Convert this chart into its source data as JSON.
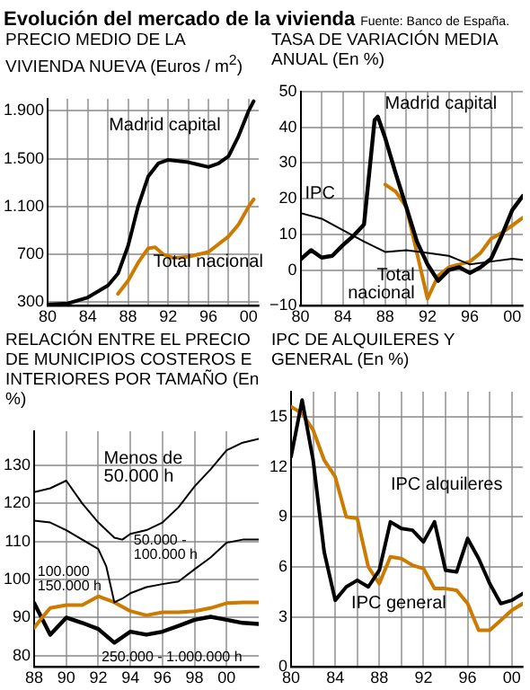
{
  "chart_data": [
    {
      "type": "line",
      "title": "PRECIO MEDIO DE LA VIVIENDA NUEVA (Euros / m$^{2}$)",
      "annotations": [
        "Evolución del mercado de la vivienda",
        "Fuente: Banco de España."
      ],
      "xlim": [
        1980,
        2001
      ],
      "xticks": [
        {
          "value": 1980,
          "label": "80"
        },
        {
          "value": 1982,
          "label": null
        },
        {
          "value": 1984,
          "label": "84"
        },
        {
          "value": 1986,
          "label": null
        },
        {
          "value": 1988,
          "label": "88"
        },
        {
          "value": 1990,
          "label": null
        },
        {
          "value": 1992,
          "label": "92"
        },
        {
          "value": 1994,
          "label": null
        },
        {
          "value": 1996,
          "label": "96"
        },
        {
          "value": 1998,
          "label": null
        },
        {
          "value": 2000,
          "label": "00"
        }
      ],
      "ylim": [
        270,
        2000
      ],
      "yticks": [
        {
          "value": 300,
          "label": "300"
        },
        {
          "value": 700,
          "label": "700"
        },
        {
          "value": 1100,
          "label": "1.100"
        },
        {
          "value": 1500,
          "label": "1.500"
        },
        {
          "value": 1900,
          "label": "1.900"
        }
      ],
      "grid": true,
      "legend": false,
      "series": [
        {
          "name": "Madrid capital",
          "color": "#000000",
          "x": [
            1980,
            1982,
            1984,
            1986,
            1987,
            1988,
            1989,
            1990,
            1991,
            1992,
            1993,
            1994,
            1995,
            1996,
            1997,
            1998,
            1999,
            2000,
            2000.5
          ],
          "values": [
            280,
            290,
            340,
            440,
            540,
            770,
            1100,
            1350,
            1460,
            1490,
            1480,
            1470,
            1450,
            1430,
            1460,
            1520,
            1690,
            1900,
            1980
          ]
        },
        {
          "name": "Total nacional",
          "color": "#cc7a00",
          "x": [
            1987,
            1988,
            1989,
            1990,
            1990.7,
            1991.5,
            1992.5,
            1994,
            1996,
            1998,
            1999,
            2000,
            2000.5
          ],
          "values": [
            370,
            480,
            630,
            750,
            760,
            700,
            670,
            680,
            720,
            850,
            950,
            1100,
            1160
          ]
        }
      ]
    },
    {
      "type": "line",
      "title": "TASA DE VARIACIÓN MEDIA ANUAL (En %)",
      "xlim": [
        1980,
        2001
      ],
      "xticks": [
        {
          "value": 1980,
          "label": "80"
        },
        {
          "value": 1982,
          "label": null
        },
        {
          "value": 1984,
          "label": "84"
        },
        {
          "value": 1986,
          "label": null
        },
        {
          "value": 1988,
          "label": "88"
        },
        {
          "value": 1990,
          "label": null
        },
        {
          "value": 1992,
          "label": "92"
        },
        {
          "value": 1994,
          "label": null
        },
        {
          "value": 1996,
          "label": "96"
        },
        {
          "value": 1998,
          "label": null
        },
        {
          "value": 2000,
          "label": "00"
        }
      ],
      "ylim": [
        -10,
        50
      ],
      "yticks": [
        {
          "value": -10,
          "label": "−10"
        },
        0,
        10,
        20,
        30,
        40,
        50
      ],
      "grid": true,
      "legend": false,
      "series": [
        {
          "name": "Madrid capital",
          "color": "#000000",
          "x": [
            1980,
            1981,
            1982,
            1983,
            1984,
            1985,
            1986,
            1987,
            1987.3,
            1988,
            1989,
            1990,
            1991,
            1992,
            1993,
            1994,
            1995,
            1996,
            1997,
            1998,
            1999,
            2000,
            2001
          ],
          "values": [
            3,
            5.6,
            3.5,
            4,
            7,
            9.6,
            12.8,
            42,
            43,
            37,
            27,
            17.6,
            8,
            1.6,
            -3,
            0,
            0.8,
            -0.8,
            0.8,
            3.2,
            9.6,
            16.8,
            20.8
          ]
        },
        {
          "name": "IPC",
          "color": "#000000",
          "x": [
            1980,
            1982,
            1984,
            1986,
            1988,
            1990,
            1992,
            1994,
            1996,
            1998,
            2000,
            2001
          ],
          "values": [
            16,
            14.4,
            11.2,
            8,
            5.1,
            5.6,
            4.8,
            4,
            1.6,
            2.4,
            3.2,
            2.9
          ]
        },
        {
          "name": "Total nacional",
          "color": "#cc7a00",
          "x": [
            1988,
            1989,
            1990,
            1991,
            1992,
            1993,
            1994,
            1995,
            1996,
            1997,
            1998,
            1999,
            2000,
            2001
          ],
          "values": [
            24,
            22,
            17.6,
            4.8,
            -8,
            -1.6,
            0.8,
            1.6,
            2.4,
            4.8,
            8.8,
            10.4,
            12.5,
            14.7
          ]
        }
      ]
    },
    {
      "type": "line",
      "title": "RELACIÓN ENTRE EL PRECIO DE MUNICIPIOS COSTEROS E INTERIORES POR TAMAÑO (En %)",
      "xlim": [
        1988,
        2002
      ],
      "xticks": [
        {
          "value": 1988,
          "label": "88"
        },
        {
          "value": 1990,
          "label": "90"
        },
        {
          "value": 1992,
          "label": "92"
        },
        {
          "value": 1994,
          "label": "94"
        },
        {
          "value": 1996,
          "label": "96"
        },
        {
          "value": 1998,
          "label": "98"
        },
        {
          "value": 2000,
          "label": "00"
        }
      ],
      "ylim": [
        77,
        139
      ],
      "yticks": [
        80,
        90,
        100,
        110,
        120,
        130
      ],
      "grid": true,
      "legend": false,
      "series": [
        {
          "name": "Menos de 50.000 h",
          "color": "#000000",
          "x": [
            1988,
            1989,
            1990,
            1991,
            1992,
            1993,
            1993.5,
            1994,
            1995,
            1996,
            1997,
            1998,
            1999,
            2000,
            2001,
            2002
          ],
          "values": [
            123,
            124,
            126,
            120,
            115,
            111,
            110.5,
            112,
            113,
            115,
            119,
            124.5,
            129,
            134,
            136,
            137
          ]
        },
        {
          "name": "50.000 - 100.000 h",
          "color": "#000000",
          "x": [
            1988,
            1989,
            1990,
            1991,
            1992,
            1992.5,
            1993,
            1993.5,
            1994,
            1995,
            1996,
            1997,
            1998,
            1999,
            2000,
            2001,
            2002
          ],
          "values": [
            115.5,
            115,
            113,
            110.5,
            108,
            103.4,
            94,
            95,
            96.4,
            98,
            98.8,
            99.5,
            102.7,
            105.8,
            109.7,
            110.5,
            110.5
          ]
        },
        {
          "name": "100.000 150.000 h",
          "color": "#cc7a00",
          "x": [
            1988,
            1988.5,
            1989,
            1990,
            1991,
            1992,
            1993,
            1994,
            1995,
            1996,
            1997,
            1998,
            1999,
            2000,
            2001,
            2002
          ],
          "values": [
            87.3,
            90,
            92.5,
            93.3,
            93.3,
            95.6,
            94,
            91.7,
            90.6,
            91.4,
            91.4,
            91.7,
            92.5,
            93.8,
            94,
            94
          ]
        },
        {
          "name": "250.000 - 1.000.000 h",
          "color": "#000000",
          "x": [
            1988,
            1989,
            1990,
            1991,
            1992,
            1993,
            1994,
            1995,
            1996,
            1997,
            1998,
            1999,
            2000,
            2001,
            2002
          ],
          "values": [
            93.8,
            85.5,
            90,
            88.6,
            87,
            83.4,
            86.3,
            85.5,
            86.3,
            87.8,
            89.4,
            90.2,
            89.4,
            88.6,
            88.3
          ]
        }
      ]
    },
    {
      "type": "line",
      "title": "IPC DE ALQUILERES Y GENERAL (En %)",
      "xlim": [
        1980,
        2001
      ],
      "xticks": [
        {
          "value": 1980,
          "label": "80"
        },
        {
          "value": 1982,
          "label": null
        },
        {
          "value": 1984,
          "label": "84"
        },
        {
          "value": 1986,
          "label": null
        },
        {
          "value": 1988,
          "label": "88"
        },
        {
          "value": 1990,
          "label": null
        },
        {
          "value": 1992,
          "label": "92"
        },
        {
          "value": 1994,
          "label": null
        },
        {
          "value": 1996,
          "label": "96"
        },
        {
          "value": 1998,
          "label": null
        },
        {
          "value": 2000,
          "label": "00"
        }
      ],
      "ylim": [
        0,
        16.5
      ],
      "yticks": [
        0,
        3,
        6,
        9,
        12,
        15
      ],
      "grid": true,
      "legend": false,
      "series": [
        {
          "name": "IPC alquileres",
          "color": "#000000",
          "x": [
            1980,
            1981,
            1982,
            1983,
            1984,
            1985,
            1986,
            1987,
            1988,
            1989,
            1990,
            1991,
            1992,
            1993,
            1994,
            1995,
            1996,
            1997,
            1998,
            1999,
            2000,
            2001
          ],
          "values": [
            12.6,
            16,
            12.4,
            6.9,
            4,
            4.8,
            5.2,
            4.8,
            5.8,
            8.7,
            8.3,
            8.2,
            7.5,
            8.7,
            5.8,
            5.7,
            7.7,
            6.5,
            5,
            3.8,
            4,
            4.4
          ]
        },
        {
          "name": "IPC general",
          "color": "#cc7a00",
          "x": [
            1980,
            1981,
            1982,
            1983,
            1984,
            1985,
            1986,
            1987,
            1988,
            1989,
            1990,
            1991,
            1992,
            1993,
            1994,
            1995,
            1996,
            1997,
            1998,
            1999,
            2000,
            2001
          ],
          "values": [
            15.6,
            15.2,
            14.2,
            12.4,
            11.4,
            9,
            8.9,
            6,
            5,
            6.6,
            6.5,
            6.1,
            5.9,
            4.7,
            4.7,
            4.6,
            3.8,
            2.2,
            2.2,
            2.8,
            3.4,
            3.8
          ]
        }
      ]
    }
  ]
}
